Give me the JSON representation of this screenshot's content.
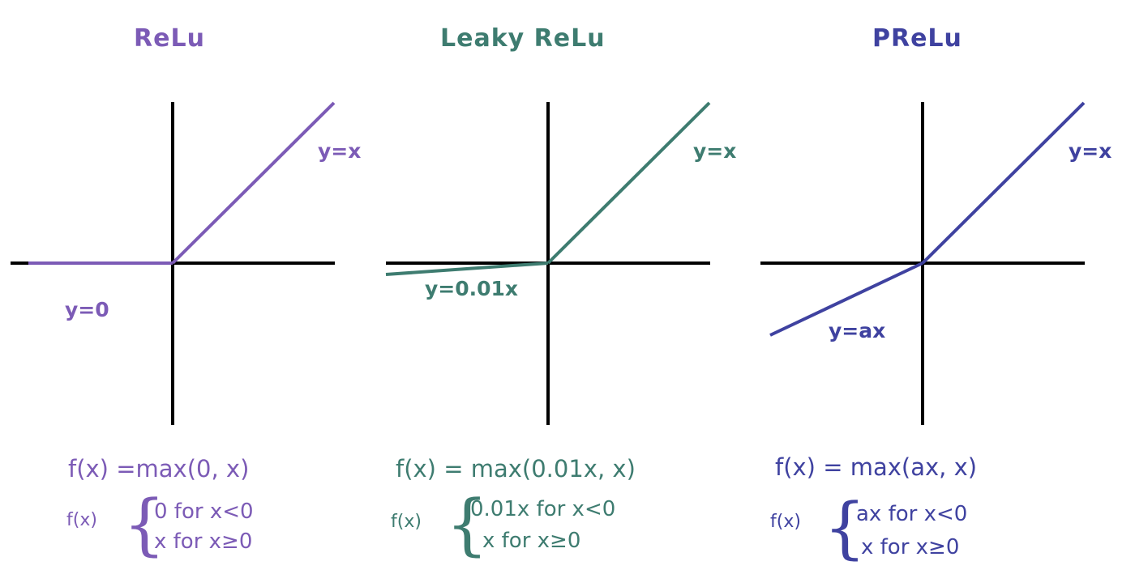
{
  "colors": {
    "relu": "#7c5bb6",
    "leaky": "#3e7c70",
    "prelu": "#3f42a0",
    "axis": "#000000"
  },
  "panels": [
    {
      "id": "relu",
      "title": "ReLu",
      "line_label_pos": "y=x",
      "line_label_neg": "y=0",
      "negative_slope": 0,
      "formula": "f(x) =max(0, x)",
      "piecewise_label": "f(x)",
      "case_neg": "0 for x<0",
      "case_pos": "x for x≥0"
    },
    {
      "id": "leaky",
      "title": "Leaky ReLu",
      "line_label_pos": "y=x",
      "line_label_neg": "y=0.01x",
      "negative_slope": 0.01,
      "formula": "f(x) = max(0.01x, x)",
      "piecewise_label": "f(x)",
      "case_neg": "0.01x for x<0",
      "case_pos": "x for x≥0"
    },
    {
      "id": "prelu",
      "title": "PReLu",
      "line_label_pos": "y=x",
      "line_label_neg": "y=ax",
      "negative_slope": "a",
      "formula": "f(x) = max(ax, x)",
      "piecewise_label": "f(x)",
      "case_neg": "ax for x<0",
      "case_pos": "x for x≥0"
    }
  ]
}
